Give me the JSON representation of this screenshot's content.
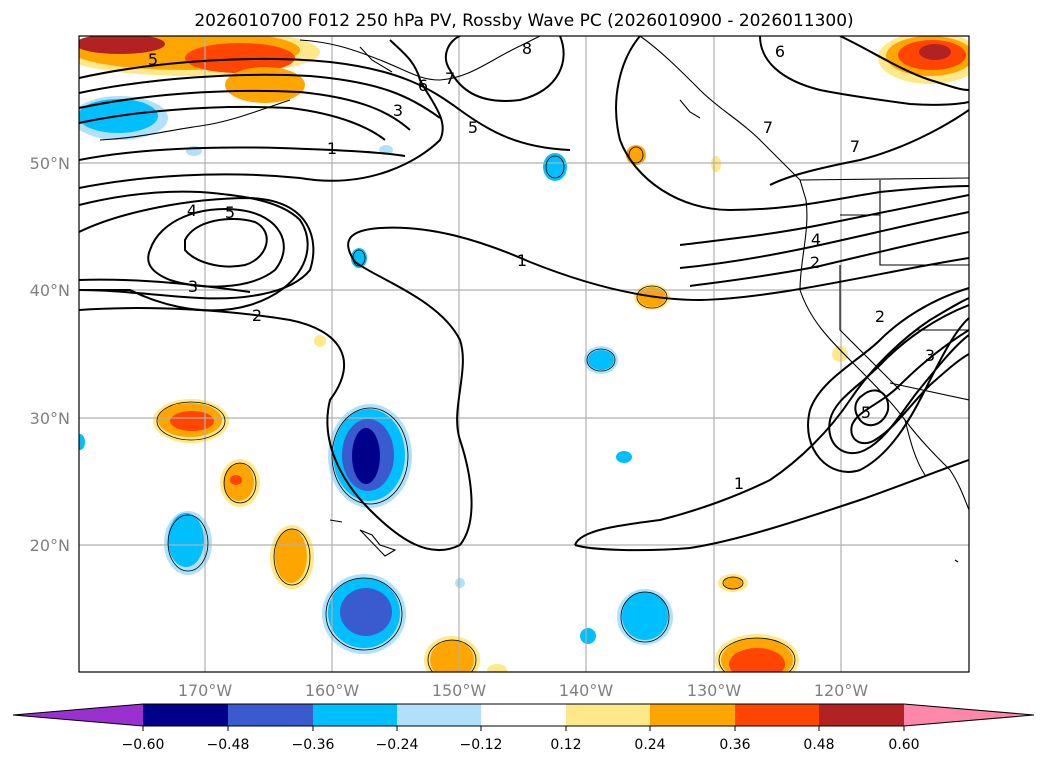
{
  "title": "2026010700 F012 250 hPa PV, Rossby Wave PC (2026010900 - 2026011300)",
  "map": {
    "lon_ticks": [
      "170°W",
      "160°W",
      "150°W",
      "140°W",
      "130°W",
      "120°W"
    ],
    "lat_ticks": [
      "50°N",
      "40°N",
      "30°N",
      "20°N"
    ]
  },
  "colorbar": {
    "ticks": [
      "−0.60",
      "−0.48",
      "−0.36",
      "−0.24",
      "−0.12",
      "0.12",
      "0.24",
      "0.36",
      "0.48",
      "0.60"
    ],
    "colors": [
      "#9b30d0",
      "#00008b",
      "#3a5bd0",
      "#00bfff",
      "#b0e0fa",
      "#ffffff",
      "#ffe88a",
      "#ffa500",
      "#ff4500",
      "#b22222",
      "#ff88aa"
    ]
  },
  "contour_labels": [
    "5",
    "8",
    "6",
    "7",
    "6",
    "3",
    "5",
    "7",
    "7",
    "1",
    "4",
    "5",
    "3",
    "2",
    "1",
    "4",
    "2",
    "2",
    "3",
    "5",
    "1"
  ],
  "chart_data": {
    "type": "map",
    "projection": "equirectangular",
    "lon_range": [
      -180,
      -110
    ],
    "lat_range": [
      10,
      60
    ],
    "fields": {
      "shaded": "250 hPa PV Rossby wave PC anomaly",
      "contours": "Rossby wave PC"
    },
    "contour_levels_labeled": [
      1,
      2,
      3,
      4,
      5,
      6,
      7,
      8
    ]
  }
}
